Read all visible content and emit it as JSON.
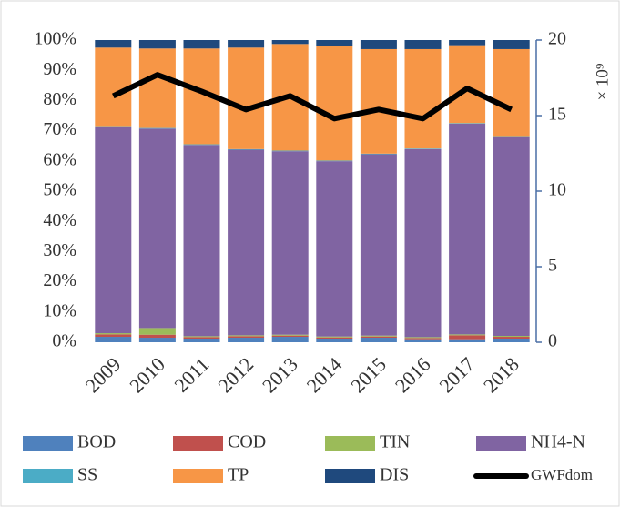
{
  "chart_data": {
    "type": "bar",
    "stacked": true,
    "categories": [
      "2009",
      "2010",
      "2011",
      "2012",
      "2013",
      "2014",
      "2015",
      "2016",
      "2017",
      "2018"
    ],
    "series": [
      {
        "name": "BOD",
        "color": "#4f81bd",
        "values": [
          1.8,
          1.5,
          1.2,
          1.5,
          1.8,
          1.2,
          1.5,
          1.0,
          1.0,
          1.2
        ]
      },
      {
        "name": "COD",
        "color": "#c0504d",
        "values": [
          0.8,
          1.0,
          0.5,
          0.5,
          0.4,
          0.4,
          0.4,
          0.4,
          1.3,
          0.6
        ]
      },
      {
        "name": "TIN",
        "color": "#9bbb59",
        "values": [
          0.4,
          2.2,
          0.3,
          0.3,
          0.3,
          0.3,
          0.3,
          0.3,
          0.3,
          0.3
        ]
      },
      {
        "name": "NH4-N",
        "color": "#8064a2",
        "values": [
          68.3,
          66.0,
          63.3,
          61.4,
          60.7,
          58.0,
          60.0,
          62.2,
          69.7,
          65.9
        ]
      },
      {
        "name": "SS",
        "color": "#4bacc6",
        "values": [
          0.2,
          0.2,
          0.2,
          0.2,
          0.2,
          0.2,
          0.2,
          0.2,
          0.2,
          0.2
        ]
      },
      {
        "name": "TP",
        "color": "#f79646",
        "values": [
          26.0,
          26.3,
          31.7,
          33.6,
          35.3,
          37.9,
          34.6,
          32.9,
          25.8,
          28.8
        ]
      },
      {
        "name": "DIS",
        "color": "#1f497d",
        "values": [
          2.5,
          2.8,
          2.8,
          2.5,
          1.3,
          2.0,
          3.0,
          3.0,
          1.7,
          3.0
        ]
      },
      {
        "name": "GWFdom",
        "color": "#000000",
        "type": "line",
        "axis": "y2",
        "values": [
          16.3,
          17.7,
          16.6,
          15.4,
          16.3,
          14.8,
          15.4,
          14.8,
          16.8,
          15.4
        ]
      }
    ],
    "ylim": [
      0,
      100
    ],
    "yticks": [
      {
        "value": 0,
        "label": "0%"
      },
      {
        "value": 10,
        "label": "10%"
      },
      {
        "value": 20,
        "label": "20%"
      },
      {
        "value": 30,
        "label": "30%"
      },
      {
        "value": 40,
        "label": "40%"
      },
      {
        "value": 50,
        "label": "50%"
      },
      {
        "value": 60,
        "label": "60%"
      },
      {
        "value": 70,
        "label": "70%"
      },
      {
        "value": 80,
        "label": "80%"
      },
      {
        "value": 90,
        "label": "90%"
      },
      {
        "value": 100,
        "label": "100%"
      }
    ],
    "y2lim": [
      0,
      20
    ],
    "y2ticks": [
      0,
      5,
      10,
      15,
      20
    ],
    "y2_annotation": "× 10⁹",
    "legend": "bottom"
  }
}
